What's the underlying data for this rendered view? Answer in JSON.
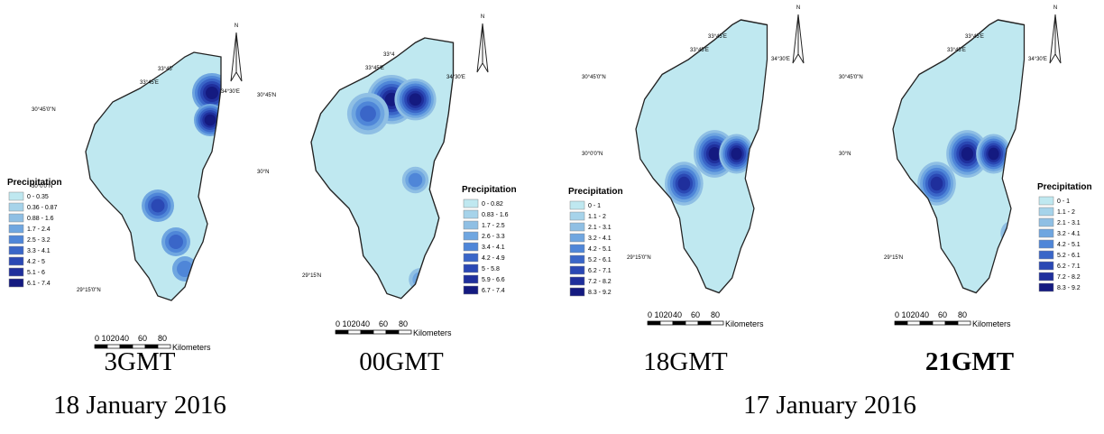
{
  "legend_colors": [
    "#bfe8f0",
    "#a6d3ea",
    "#8fbfe4",
    "#6fa6e0",
    "#4f86d8",
    "#3a66c8",
    "#2a48b4",
    "#1f2f9c",
    "#141a80"
  ],
  "panels": [
    {
      "caption": "3GMT",
      "north": "N",
      "legend": {
        "title": "Precipitation",
        "items": [
          "0 - 0.35",
          "0.36 - 0.87",
          "0.88 - 1.6",
          "1.7 - 2.4",
          "2.5 - 3.2",
          "3.3 - 4.1",
          "4.2 - 5",
          "5.1 - 6",
          "6.1 - 7.4"
        ]
      },
      "coords": [
        "33°45'",
        "33°45'E",
        "34°30'E",
        "30°45'0\"N",
        "30°0'0\"N",
        "29°15'0\"N"
      ],
      "scale": {
        "ticks": [
          "0 1020",
          "40",
          "60",
          "80"
        ],
        "unit": "Kilometers"
      }
    },
    {
      "caption": "00GMT",
      "north": "N",
      "legend": {
        "title": "Precipitation",
        "items": [
          "0 - 0.82",
          "0.83 - 1.6",
          "1.7 - 2.5",
          "2.6 - 3.3",
          "3.4 - 4.1",
          "4.2 - 4.9",
          "5 - 5.8",
          "5.9 - 6.6",
          "6.7 - 7.4"
        ]
      },
      "coords": [
        "33°4",
        "33°45'E",
        "34°30'E",
        "30°45'N",
        "30°N",
        "29°15'N"
      ],
      "scale": {
        "ticks": [
          "0 1020",
          "40",
          "60",
          "80"
        ],
        "unit": "Kilometers"
      }
    },
    {
      "caption": "18GMT",
      "north": "N",
      "legend": {
        "title": "Precipitation",
        "items": [
          "0 - 1",
          "1.1 - 2",
          "2.1 - 3.1",
          "3.2 - 4.1",
          "4.2 - 5.1",
          "5.2 - 6.1",
          "6.2 - 7.1",
          "7.2 - 8.2",
          "8.3 - 9.2"
        ]
      },
      "coords": [
        "33°45'E",
        "33°45'E",
        "34°30'E",
        "30°45'0\"N",
        "30°0'0\"N",
        "29°15'0\"N"
      ],
      "scale": {
        "ticks": [
          "0 1020",
          "40",
          "60",
          "80"
        ],
        "unit": "Kilometers"
      }
    },
    {
      "caption": "21GMT",
      "north": "N",
      "legend": {
        "title": "Precipitation",
        "items": [
          "0 - 1",
          "1.1 - 2",
          "2.1 - 3.1",
          "3.2 - 4.1",
          "4.2 - 5.1",
          "5.2 - 6.1",
          "6.2 - 7.1",
          "7.2 - 8.2",
          "8.3 - 9.2"
        ]
      },
      "coords": [
        "33°45'E",
        "33°45'E",
        "34°30'E",
        "30°45'0\"N",
        "30°N",
        "29°15'N"
      ],
      "scale": {
        "ticks": [
          "0 1020",
          "40",
          "60",
          "80"
        ],
        "unit": "Kilometers"
      }
    }
  ],
  "dates": [
    "18 January 2016",
    "17 January 2016"
  ]
}
